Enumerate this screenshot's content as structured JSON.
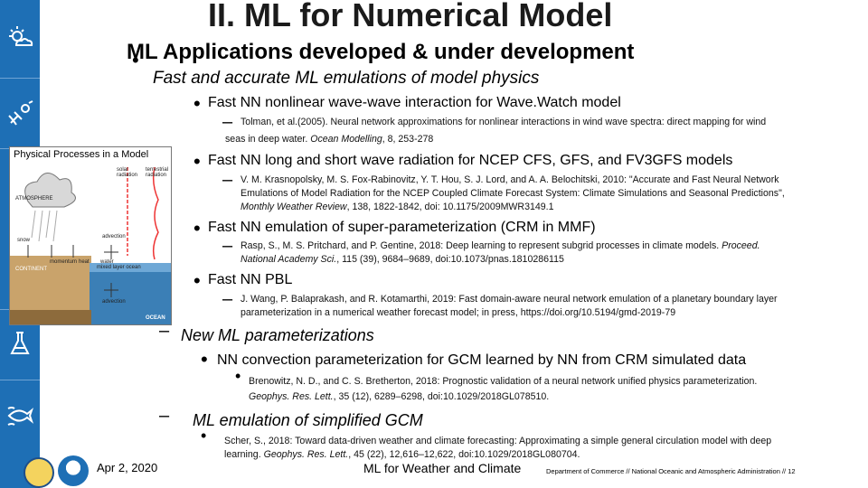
{
  "slide": {
    "title": "II. ML for Numerical Model",
    "subtitle": "ML Applications developed & under development",
    "level1": "Fast and accurate ML emulations of model physics",
    "items": [
      {
        "heading": "Fast NN nonlinear wave-wave interaction for Wave.Watch model",
        "ref_line1": "Tolman, et al.(2005). Neural network approximations for nonlinear interactions in wind wave spectra: direct mapping for wind",
        "ref_line2_plain": "seas in deep water. ",
        "ref_line2_italic": "Ocean Modelling",
        "ref_line2_tail": ", 8, 253-278"
      },
      {
        "heading": "Fast NN long and short wave radiation for NCEP CFS, GFS, and FV3GFS models",
        "ref_line1": "V. M. Krasnopolsky, M. S. Fox-Rabinovitz, Y. T. Hou, S. J. Lord, and A. A. Belochitski, 2010: \"Accurate and Fast Neural Network",
        "ref_line2": "Emulations of Model Radiation for the NCEP Coupled Climate Forecast System: Climate Simulations and Seasonal Predictions\",",
        "ref_line3_italic": "Monthly Weather Review",
        "ref_line3_tail": ", 138, 1822-1842, doi: 10.1175/2009MWR3149.1"
      },
      {
        "heading": "Fast NN emulation of super-parameterization (CRM in MMF)",
        "ref_line1_plain": "Rasp, S., M. S. Pritchard, and P. Gentine, 2018: Deep learning to represent subgrid processes in climate models. ",
        "ref_line1_italic": "Proceed.",
        "ref_line2_italic": "National Academy Sci.",
        "ref_line2_tail": ", 115 (39), 9684–9689, doi:10.1073/pnas.1810286115"
      },
      {
        "heading": "Fast NN PBL",
        "ref_line1": "J. Wang, P. Balaprakash, and R. Kotamarthi, 2019: Fast domain-aware neural network emulation of a planetary boundary layer",
        "ref_line2": "parameterization in a numerical weather forecast model; in press, https://doi.org/10.5194/gmd-2019-79"
      }
    ],
    "new_ml": {
      "heading": "New ML parameterizations",
      "sub": "NN convection parameterization for GCM learned by NN from CRM simulated data",
      "ref_line1": "Brenowitz, N. D., and C. S. Bretherton, 2018: Prognostic validation of a neural network unified physics parameterization.",
      "ref_line2_italic": "Geophys. Res. Lett.",
      "ref_line2_tail": ", 35 (12), 6289–6298, doi:10.1029/2018GL078510."
    },
    "simplified": {
      "heading": "ML emulation of simplified GCM",
      "ref_line1": "Scher, S., 2018: Toward data-driven weather and climate forecasting: Approximating a simple general circulation model with deep",
      "ref_line2_plain": "learning. ",
      "ref_line2_italic": "Geophys. Res. Lett.",
      "ref_line2_tail": ", 45 (22), 12,616–12,622, doi:10.1029/2018GL080704."
    },
    "figure": {
      "title": "Physical Processes in a Model",
      "labels": {
        "atmosphere": "ATMOSPHERE",
        "solar": "solar radiation",
        "terrestrial": "terrestrial radiation",
        "continent": "CONTINENT",
        "snow": "snow",
        "momentum": "momentum",
        "heat": "heat",
        "water": "water",
        "mixed": "mixed layer ocean",
        "advection": "advection",
        "ocean": "OCEAN"
      }
    }
  },
  "footer": {
    "date": "Apr 2, 2020",
    "center": "ML for Weather and Climate",
    "right": "Department of Commerce // National Oceanic and Atmospheric Administration // 12"
  },
  "colors": {
    "sidebar": "#1e6fb5"
  },
  "sidebar_icons": [
    "sun-cloud-icon",
    "satellite-icon",
    "flask-icon",
    "fish-icon"
  ]
}
